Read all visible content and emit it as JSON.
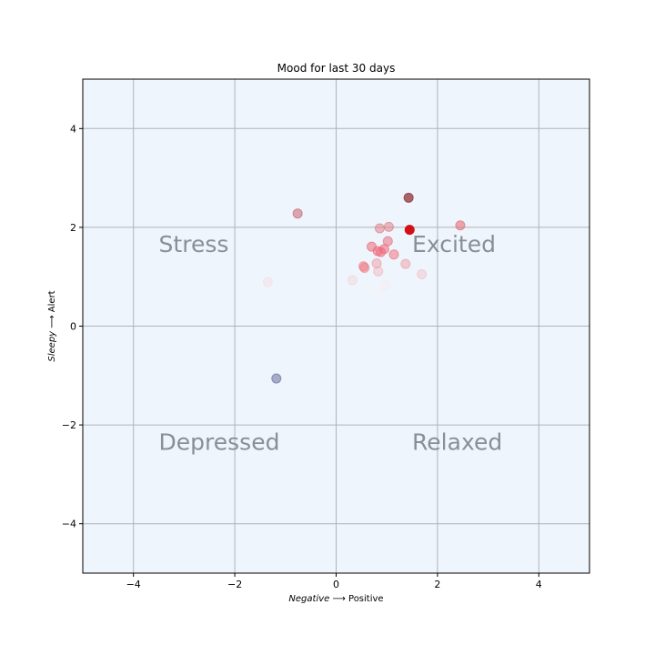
{
  "chart_data": {
    "type": "scatter",
    "title": "Mood for last 30 days",
    "xlabel_italic": "Negative",
    "xlabel_rest": "Positive",
    "ylabel_italic": "Sleepy",
    "ylabel_rest": "Alert",
    "xlim": [
      -5,
      5
    ],
    "ylim": [
      -5,
      5
    ],
    "xticks": [
      -4,
      -2,
      0,
      2,
      4
    ],
    "yticks": [
      -4,
      -2,
      0,
      2,
      4
    ],
    "grid": true,
    "background_color": "#eef5fd",
    "quadrant_labels": [
      {
        "text": "Stress",
        "x": -3.5,
        "y": 1.5
      },
      {
        "text": "Excited",
        "x": 1.5,
        "y": 1.5
      },
      {
        "text": "Depressed",
        "x": -3.5,
        "y": -2.5
      },
      {
        "text": "Relaxed",
        "x": 1.5,
        "y": -2.5
      }
    ],
    "points": [
      {
        "x": 1.43,
        "y": 2.6,
        "color": "#9a4a52",
        "opacity": 0.85
      },
      {
        "x": 1.45,
        "y": 1.95,
        "color": "#d40f16",
        "opacity": 1.0
      },
      {
        "x": -0.76,
        "y": 2.28,
        "color": "#c86470",
        "opacity": 0.55
      },
      {
        "x": 2.45,
        "y": 2.04,
        "color": "#e2707a",
        "opacity": 0.6
      },
      {
        "x": 0.86,
        "y": 1.98,
        "color": "#e07880",
        "opacity": 0.5
      },
      {
        "x": 1.04,
        "y": 2.01,
        "color": "#e07880",
        "opacity": 0.5
      },
      {
        "x": 1.02,
        "y": 1.72,
        "color": "#e87080",
        "opacity": 0.55
      },
      {
        "x": 0.7,
        "y": 1.61,
        "color": "#ef6a78",
        "opacity": 0.55
      },
      {
        "x": 0.95,
        "y": 1.56,
        "color": "#ef6a78",
        "opacity": 0.55
      },
      {
        "x": 0.82,
        "y": 1.52,
        "color": "#ef6a78",
        "opacity": 0.55
      },
      {
        "x": 0.88,
        "y": 1.5,
        "color": "#ef6a78",
        "opacity": 0.55
      },
      {
        "x": 1.14,
        "y": 1.45,
        "color": "#ef6a78",
        "opacity": 0.5
      },
      {
        "x": 0.8,
        "y": 1.27,
        "color": "#f08890",
        "opacity": 0.4
      },
      {
        "x": 1.37,
        "y": 1.26,
        "color": "#f08890",
        "opacity": 0.4
      },
      {
        "x": 0.54,
        "y": 1.21,
        "color": "#f07880",
        "opacity": 0.5
      },
      {
        "x": 0.56,
        "y": 1.18,
        "color": "#f07880",
        "opacity": 0.45
      },
      {
        "x": 0.83,
        "y": 1.11,
        "color": "#f4a0a8",
        "opacity": 0.35
      },
      {
        "x": 1.69,
        "y": 1.05,
        "color": "#f4b0b6",
        "opacity": 0.35
      },
      {
        "x": 0.32,
        "y": 0.93,
        "color": "#f6c6ca",
        "opacity": 0.3
      },
      {
        "x": -1.35,
        "y": 0.89,
        "color": "#f8d4d8",
        "opacity": 0.3
      },
      {
        "x": 0.97,
        "y": 0.82,
        "color": "#fae6e8",
        "opacity": 0.25
      },
      {
        "x": 0.83,
        "y": 0.74,
        "color": "#fdf2f3",
        "opacity": 0.25
      },
      {
        "x": -1.18,
        "y": -1.06,
        "color": "#6a6f9a",
        "opacity": 0.55
      }
    ]
  }
}
